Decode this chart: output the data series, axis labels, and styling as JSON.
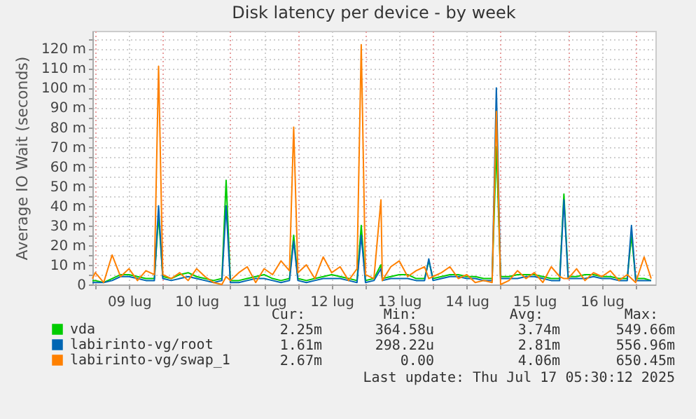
{
  "chart_data": {
    "type": "line",
    "title": "Disk latency per device - by week",
    "ylabel": "Average IO Wait (seconds)",
    "x": [
      "--07-08T23:00",
      "--07-09T00:00",
      "--07-09T03:00",
      "--07-09T06:00",
      "--07-09T09:00",
      "--07-09T12:00",
      "--07-09T15:00",
      "--07-09T18:00",
      "--07-09T21:00",
      "--07-09T22:30",
      "--07-10T00:00",
      "--07-10T03:00",
      "--07-10T06:00",
      "--07-10T09:00",
      "--07-10T12:00",
      "--07-10T15:00",
      "--07-10T18:00",
      "--07-10T21:00",
      "--07-10T22:30",
      "--07-11T00:00",
      "--07-11T03:00",
      "--07-11T06:00",
      "--07-11T09:00",
      "--07-11T12:00",
      "--07-11T15:00",
      "--07-11T18:00",
      "--07-11T21:00",
      "--07-11T22:30",
      "--07-12T00:00",
      "--07-12T03:00",
      "--07-12T06:00",
      "--07-12T09:00",
      "--07-12T12:00",
      "--07-12T15:00",
      "--07-12T18:00",
      "--07-12T21:00",
      "--07-12T22:30",
      "--07-13T00:00",
      "--07-13T03:00",
      "--07-13T05:30",
      "--07-13T06:00",
      "--07-13T09:00",
      "--07-13T12:00",
      "--07-13T15:00",
      "--07-13T18:00",
      "--07-13T21:00",
      "--07-13T22:30",
      "--07-14T00:00",
      "--07-14T03:00",
      "--07-14T06:00",
      "--07-14T09:00",
      "--07-14T12:00",
      "--07-14T15:00",
      "--07-14T18:00",
      "--07-14T21:00",
      "--07-14T22:30",
      "--07-15T00:00",
      "--07-15T03:00",
      "--07-15T06:00",
      "--07-15T09:00",
      "--07-15T12:00",
      "--07-15T15:00",
      "--07-15T18:00",
      "--07-15T21:00",
      "--07-15T22:30",
      "--07-16T00:00",
      "--07-16T03:00",
      "--07-16T06:00",
      "--07-16T09:00",
      "--07-16T12:00",
      "--07-16T15:00",
      "--07-16T18:00",
      "--07-16T21:00",
      "--07-16T22:30",
      "--07-17T00:00",
      "--07-17T03:00",
      "--07-17T05:30"
    ],
    "series": [
      {
        "name": "vda",
        "color": "#00cc00",
        "values": [
          2,
          2,
          1,
          3,
          5,
          5,
          4,
          3,
          3,
          35,
          4,
          3,
          5,
          6,
          4,
          3,
          2,
          3,
          53,
          2,
          2,
          3,
          4,
          5,
          3,
          2,
          3,
          25,
          3,
          2,
          3,
          4,
          5,
          4,
          3,
          2,
          30,
          2,
          3,
          10,
          3,
          4,
          5,
          5,
          3,
          3,
          12,
          3,
          4,
          5,
          5,
          4,
          4,
          3,
          3,
          70,
          4,
          4,
          5,
          5,
          5,
          4,
          3,
          3,
          46,
          4,
          4,
          5,
          5,
          4,
          4,
          3,
          3,
          25,
          3,
          3,
          2
        ]
      },
      {
        "name": "labirinto-vg/root",
        "color": "#0066b3",
        "values": [
          1,
          1,
          1,
          2,
          4,
          4,
          3,
          2,
          2,
          40,
          3,
          2,
          3,
          4,
          3,
          2,
          1,
          2,
          40,
          1,
          1,
          2,
          3,
          3,
          2,
          1,
          2,
          22,
          2,
          1,
          2,
          3,
          3,
          3,
          2,
          1,
          25,
          1,
          2,
          8,
          2,
          3,
          3,
          3,
          2,
          2,
          13,
          2,
          3,
          4,
          4,
          3,
          3,
          2,
          2,
          100,
          3,
          3,
          3,
          4,
          4,
          3,
          2,
          2,
          43,
          3,
          3,
          3,
          4,
          3,
          3,
          2,
          2,
          30,
          2,
          2,
          2
        ]
      },
      {
        "name": "labirinto-vg/swap_1",
        "color": "#ff8000",
        "values": [
          3,
          6,
          1,
          15,
          4,
          8,
          2,
          7,
          5,
          111,
          5,
          3,
          6,
          2,
          8,
          4,
          1,
          0,
          4,
          2,
          6,
          9,
          1,
          8,
          5,
          12,
          7,
          80,
          6,
          10,
          3,
          14,
          6,
          9,
          2,
          8,
          122,
          5,
          3,
          43,
          2,
          9,
          12,
          4,
          7,
          9,
          3,
          4,
          6,
          9,
          3,
          5,
          1,
          2,
          1,
          88,
          0,
          2,
          7,
          3,
          6,
          1,
          9,
          4,
          3,
          3,
          8,
          2,
          6,
          4,
          7,
          2,
          5,
          3,
          1,
          14,
          3
        ]
      }
    ],
    "xlim": [
      "--07-08T23:00",
      "--07-17T07:00"
    ],
    "xticks": [
      {
        "value": "--07-09T00:00",
        "label": null
      },
      {
        "value": "--07-09T12:00",
        "label": "09 lug"
      },
      {
        "value": "--07-10T00:00",
        "label": null
      },
      {
        "value": "--07-10T12:00",
        "label": "10 lug"
      },
      {
        "value": "--07-11T00:00",
        "label": null
      },
      {
        "value": "--07-11T12:00",
        "label": "11 lug"
      },
      {
        "value": "--07-12T00:00",
        "label": null
      },
      {
        "value": "--07-12T12:00",
        "label": "12 lug"
      },
      {
        "value": "--07-13T00:00",
        "label": null
      },
      {
        "value": "--07-13T12:00",
        "label": "13 lug"
      },
      {
        "value": "--07-14T00:00",
        "label": null
      },
      {
        "value": "--07-14T12:00",
        "label": "14 lug"
      },
      {
        "value": "--07-15T00:00",
        "label": null
      },
      {
        "value": "--07-15T12:00",
        "label": "15 lug"
      },
      {
        "value": "--07-16T00:00",
        "label": null
      },
      {
        "value": "--07-16T12:00",
        "label": "16 lug"
      },
      {
        "value": "--07-17T00:00",
        "label": null
      }
    ],
    "ylim": [
      0,
      129
    ],
    "yticks": [
      0,
      {
        "value": 5,
        "label": null
      },
      {
        "value": 10,
        "label": "10 m"
      },
      {
        "value": 15,
        "label": null
      },
      {
        "value": 20,
        "label": "20 m"
      },
      {
        "value": 25,
        "label": null
      },
      {
        "value": 30,
        "label": "30 m"
      },
      {
        "value": 35,
        "label": null
      },
      {
        "value": 40,
        "label": "40 m"
      },
      {
        "value": 45,
        "label": null
      },
      {
        "value": 50,
        "label": "50 m"
      },
      {
        "value": 55,
        "label": null
      },
      {
        "value": 60,
        "label": "60 m"
      },
      {
        "value": 65,
        "label": null
      },
      {
        "value": 70,
        "label": "70 m"
      },
      {
        "value": 75,
        "label": null
      },
      {
        "value": 80,
        "label": "80 m"
      },
      {
        "value": 85,
        "label": null
      },
      {
        "value": 90,
        "label": "90 m"
      },
      {
        "value": 95,
        "label": null
      },
      {
        "value": 100,
        "label": "100 m"
      },
      {
        "value": 105,
        "label": null
      },
      {
        "value": 110,
        "label": "110 m"
      },
      {
        "value": 115,
        "label": null
      },
      {
        "value": 120,
        "label": "120 m"
      },
      {
        "value": 125,
        "label": null
      }
    ],
    "grid": true,
    "legend": "bottom",
    "annotations": [
      "Cur:",
      "Min:",
      "Avg:",
      "Max:",
      "2.25m",
      "364.58u",
      "3.74m",
      "549.66m",
      "1.61m",
      "298.22u",
      "2.81m",
      "556.96m",
      "2.67m",
      "0.00",
      "4.06m",
      "650.45m",
      "Last update: Thu Jul 17 05:30:12 2025"
    ]
  }
}
